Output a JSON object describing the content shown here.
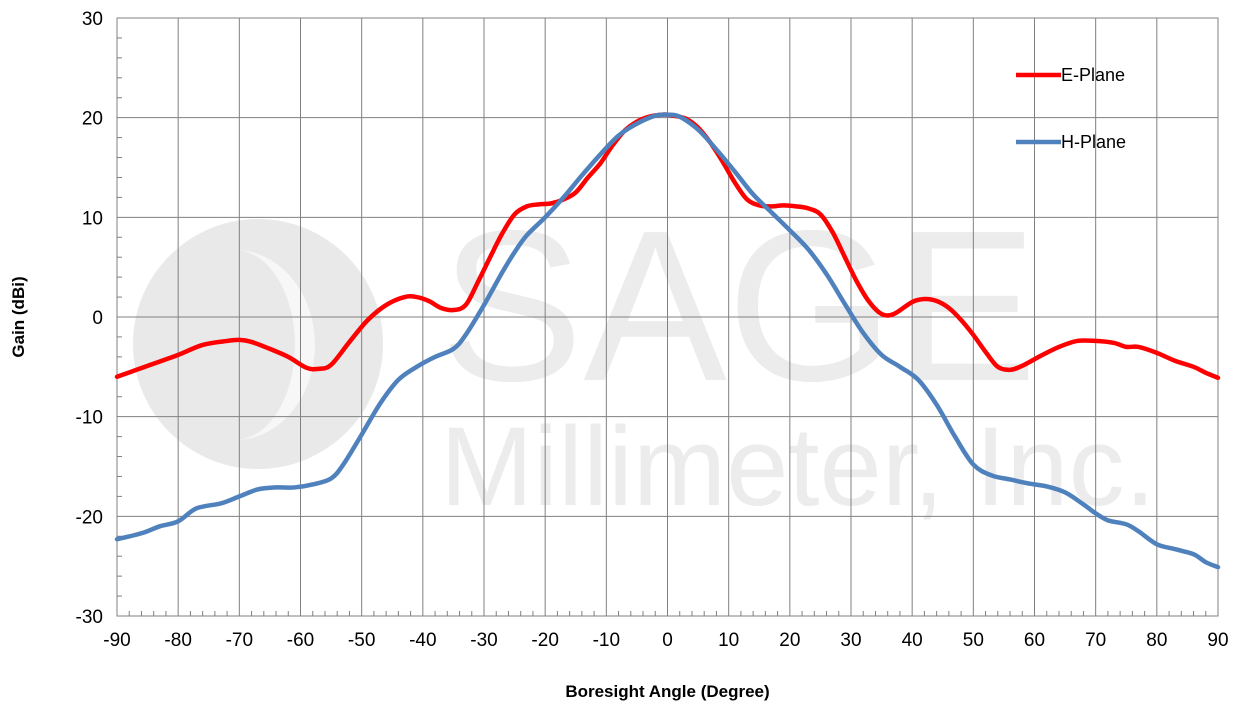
{
  "watermark": {
    "line1": "SAGE",
    "line2": "Millimeter, Inc."
  },
  "chart_data": {
    "type": "line",
    "title": "",
    "xlabel": "Boresight Angle (Degree)",
    "ylabel": "Gain (dBi)",
    "xlim": [
      -90,
      90
    ],
    "ylim": [
      -30,
      30
    ],
    "xticks": [
      -90,
      -80,
      -70,
      -60,
      -50,
      -40,
      -30,
      -20,
      -10,
      0,
      10,
      20,
      30,
      40,
      50,
      60,
      70,
      80,
      90
    ],
    "yticks": [
      -30,
      -20,
      -10,
      0,
      10,
      20,
      30
    ],
    "xticks_labels": [
      "-90",
      "-80",
      "-70",
      "-60",
      "-50",
      "-40",
      "-30",
      "-20",
      "-10",
      "0",
      "10",
      "20",
      "30",
      "40",
      "50",
      "60",
      "70",
      "80",
      "90"
    ],
    "yticks_labels": [
      "-30",
      "-20",
      "-10",
      "0",
      "10",
      "20",
      "30"
    ],
    "grid": true,
    "legend_position": "top-right",
    "series": [
      {
        "name": "E-Plane",
        "color": "#ff0000",
        "x": [
          -90,
          -85,
          -80,
          -76,
          -72,
          -70,
          -68,
          -65,
          -62,
          -59,
          -57,
          -55,
          -52,
          -49,
          -46,
          -43,
          -41,
          -39,
          -37,
          -35,
          -33,
          -31,
          -29,
          -27,
          -25,
          -23,
          -21,
          -19,
          -17,
          -15,
          -13,
          -11,
          -9,
          -7,
          -5,
          -3,
          -1,
          0,
          1,
          3,
          5,
          7,
          9,
          11,
          13,
          15,
          17,
          19,
          21,
          23,
          25,
          27,
          29,
          31,
          33,
          35,
          37,
          40,
          42,
          44,
          46,
          48,
          50,
          52,
          54,
          56,
          58,
          61,
          64,
          67,
          70,
          73,
          75,
          77,
          80,
          83,
          86,
          88,
          90
        ],
        "y": [
          -6,
          -4.9,
          -3.8,
          -2.8,
          -2.4,
          -2.3,
          -2.5,
          -3.2,
          -4,
          -5.1,
          -5.2,
          -4.8,
          -2.5,
          -0.3,
          1.2,
          2,
          2,
          1.6,
          0.9,
          0.7,
          1.2,
          3.5,
          6,
          8.4,
          10.3,
          11.1,
          11.3,
          11.4,
          11.8,
          12.5,
          14,
          15.4,
          17.2,
          18.7,
          19.6,
          20.1,
          20.3,
          20.3,
          20.2,
          19.9,
          19,
          17.5,
          15.6,
          13.5,
          11.8,
          11.2,
          11.1,
          11.2,
          11.1,
          10.9,
          10.3,
          8.5,
          6,
          3.5,
          1.5,
          0.3,
          0.3,
          1.5,
          1.8,
          1.6,
          0.9,
          -0.3,
          -1.8,
          -3.5,
          -5,
          -5.3,
          -4.9,
          -3.9,
          -3,
          -2.4,
          -2.4,
          -2.6,
          -3,
          -3,
          -3.6,
          -4.4,
          -5,
          -5.6,
          -6.1
        ]
      },
      {
        "name": "H-Plane",
        "color": "#4f81bd",
        "x": [
          -90,
          -86,
          -83,
          -80,
          -77,
          -73,
          -70,
          -67,
          -64,
          -61,
          -58,
          -55,
          -53,
          -50,
          -47,
          -44,
          -41,
          -38,
          -35,
          -33,
          -30,
          -27,
          -25,
          -23,
          -20,
          -17,
          -14,
          -11,
          -8,
          -5,
          -2,
          0,
          2,
          5,
          8,
          11,
          14,
          17,
          20,
          23,
          26,
          29,
          32,
          35,
          38,
          41,
          44,
          47,
          50,
          53,
          56,
          59,
          62,
          65,
          68,
          70,
          72,
          75,
          77,
          80,
          83,
          86,
          88,
          90
        ],
        "y": [
          -22.3,
          -21.7,
          -21,
          -20.5,
          -19.2,
          -18.7,
          -18,
          -17.3,
          -17.1,
          -17.1,
          -16.8,
          -16.2,
          -14.8,
          -11.8,
          -8.7,
          -6.3,
          -5,
          -4,
          -3.2,
          -1.8,
          1.2,
          4.5,
          6.5,
          8.2,
          10,
          12,
          14.2,
          16.3,
          18.2,
          19.4,
          20.2,
          20.3,
          20.1,
          18.8,
          16.8,
          14.6,
          12.3,
          10.5,
          8.7,
          6.8,
          4.3,
          1.3,
          -1.6,
          -3.8,
          -5,
          -6.3,
          -8.8,
          -12,
          -14.8,
          -15.9,
          -16.3,
          -16.7,
          -17,
          -17.6,
          -18.8,
          -19.7,
          -20.4,
          -20.8,
          -21.5,
          -22.8,
          -23.3,
          -23.8,
          -24.6,
          -25.1
        ]
      }
    ]
  }
}
